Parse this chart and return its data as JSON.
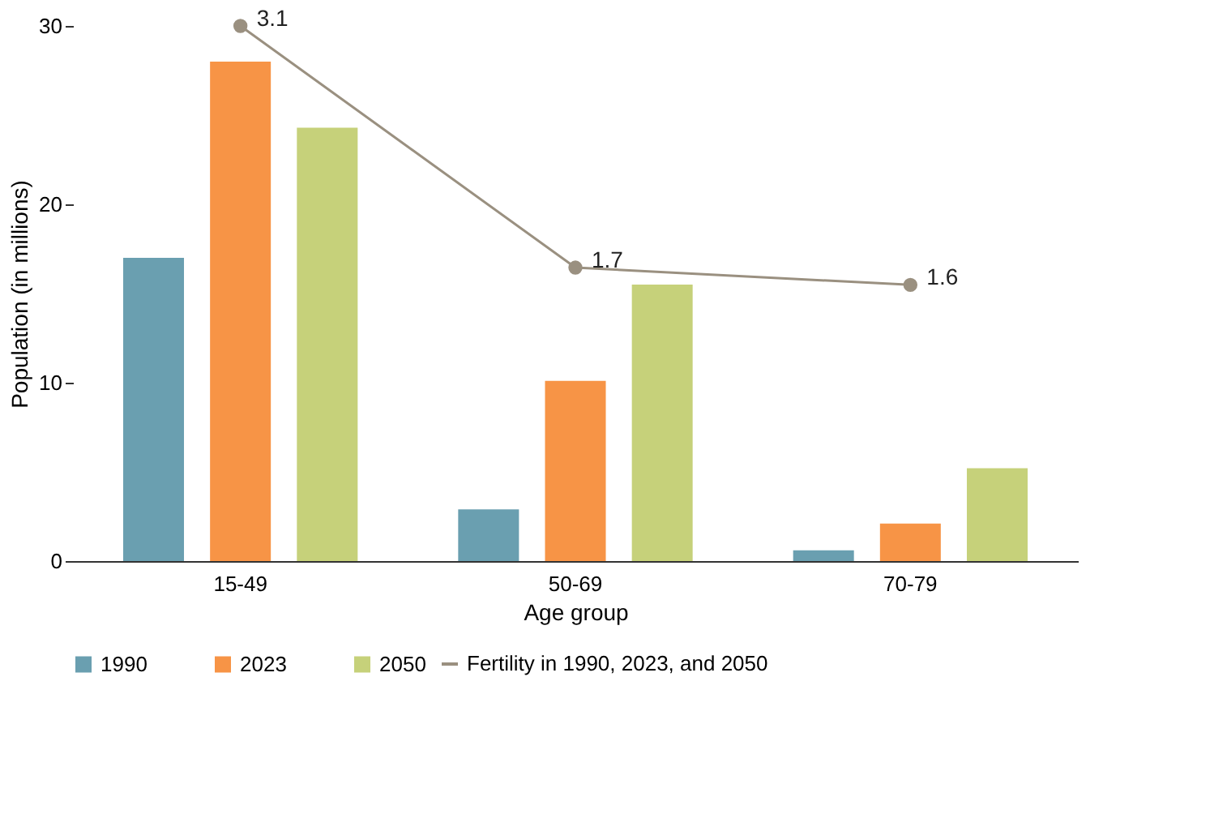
{
  "chart_data": {
    "type": "bar",
    "xlabel": "Age group",
    "ylabel": "Population (in millions)",
    "categories": [
      "15-49",
      "50-69",
      "70-79"
    ],
    "series": [
      {
        "name": "1990",
        "color": "#6a9fb0",
        "values": [
          17,
          2.9,
          0.6
        ]
      },
      {
        "name": "2023",
        "color": "#f79446",
        "values": [
          28,
          10.1,
          2.1
        ]
      },
      {
        "name": "2050",
        "color": "#c6d17a",
        "values": [
          24.3,
          15.5,
          5.2
        ]
      },
      {
        "name": "Fertility in 1990, 2023, and 2050",
        "type": "line",
        "axis": "y2",
        "color": "#9a9080",
        "marker": "circle",
        "values": [
          3.1,
          1.7,
          1.6
        ],
        "value_labels": [
          "3.1",
          "1.7",
          "1.6"
        ]
      }
    ],
    "ylim": [
      0,
      30
    ],
    "yticks": [
      0,
      10,
      20,
      30
    ],
    "grid": false,
    "legend": "bottom"
  }
}
